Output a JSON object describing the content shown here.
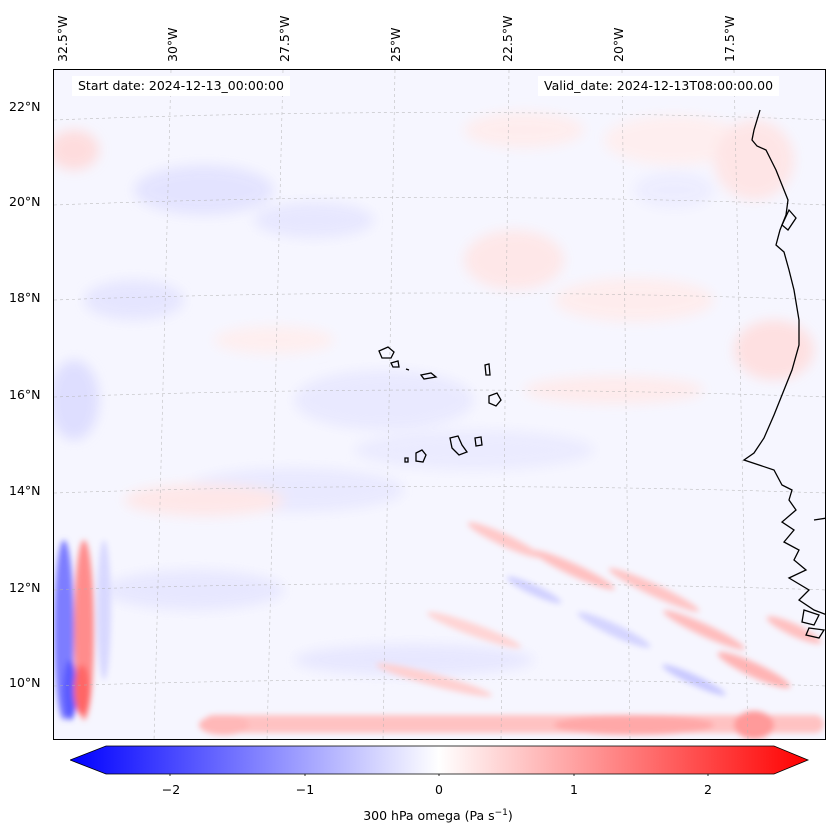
{
  "map": {
    "projection_labels": {
      "longitudes": [
        "32.5°W",
        "30°W",
        "27.5°W",
        "25°W",
        "22.5°W",
        "20°W",
        "17.5°W"
      ],
      "latitudes": [
        "22°N",
        "20°N",
        "18°N",
        "16°N",
        "14°N",
        "12°N",
        "10°N"
      ]
    },
    "start_date": "Start date: 2024-12-13_00:00:00",
    "valid_date": "Valid_date: 2024-12-13T08:00:00.00"
  },
  "colorbar": {
    "ticks": [
      "−2",
      "−1",
      "0",
      "1",
      "2"
    ],
    "label_prefix": "300 hPa omega (Pa s",
    "label_exp": "−1",
    "label_suffix": ")",
    "range": [
      -2.7,
      2.7
    ],
    "colors": {
      "negative": "#0000ff",
      "zero": "#ffffff",
      "positive": "#ff0000"
    }
  }
}
